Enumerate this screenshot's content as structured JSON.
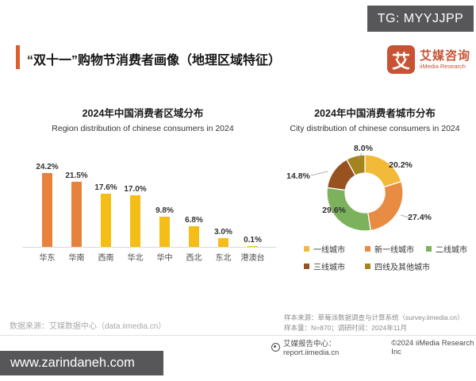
{
  "watermarks": {
    "top_badge": "TG: MYYJJPP",
    "bottom_badge": "www.zarindaneh.com"
  },
  "header": {
    "title": "“双十一”购物节消费者画像（地理区域特征）",
    "accent_color": "#DD5E2D",
    "logo": {
      "glyph": "艾",
      "name_cn": "艾媒咨询",
      "name_en": "iiMedia Research",
      "brand_color": "#C75334"
    }
  },
  "chart_data": [
    {
      "type": "bar",
      "title": "2024年中国消费者区域分布",
      "subtitle": "Region distribution of chinese consumers in 2024",
      "categories": [
        "华东",
        "华南",
        "西南",
        "华北",
        "华中",
        "西北",
        "东北",
        "港澳台"
      ],
      "values": [
        24.2,
        21.5,
        17.6,
        17.0,
        9.8,
        6.8,
        3.0,
        0.1
      ],
      "unit": "%",
      "bar_colors": [
        "#E8813B",
        "#E8813B",
        "#F5BE17",
        "#F5BE17",
        "#F5BE17",
        "#F5BE17",
        "#F5BE17",
        "#F5BE17"
      ],
      "ylim": [
        0,
        26
      ],
      "grid": false,
      "value_labels": true
    },
    {
      "type": "pie",
      "donut": true,
      "title": "2024年中国消费者城市分布",
      "subtitle": "City distribution of chinese consumers in 2024",
      "categories": [
        "一线城市",
        "新一线城市",
        "二线城市",
        "三线城市",
        "四线及其他城市"
      ],
      "values": [
        20.2,
        27.4,
        29.6,
        14.8,
        8.0
      ],
      "colors": [
        "#F2BA38",
        "#E98C43",
        "#7DB25D",
        "#97521F",
        "#A3841F"
      ],
      "unit": "%",
      "start_angle": "top",
      "direction": "clockwise",
      "legend_position": "bottom",
      "legend_rows": [
        [
          0,
          1,
          2
        ],
        [
          3,
          4
        ]
      ]
    }
  ],
  "footer": {
    "left_source": "数据来源：艾媒数据中心（data.iimedia.cn）",
    "sample_source": "样本来源：草莓派数据调查与计算系统（survey.iimedia.cn）",
    "sample_size": "样本量：N=870；调研时间：2024年11月",
    "report_center": "艾媒报告中心：report.iimedia.cn",
    "copyright": "©2024  iiMedia Research  Inc"
  }
}
